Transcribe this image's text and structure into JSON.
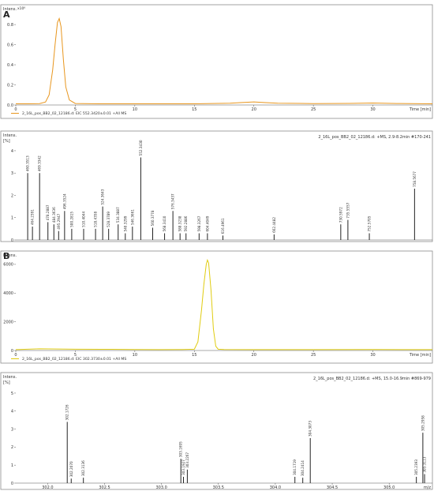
{
  "panel_labels": {
    "a": "A",
    "b": "B"
  },
  "colors": {
    "frame": "#8c8c8c",
    "tic": "#e8961e",
    "eic": "#e0cc10",
    "ms": "#222222"
  },
  "chart_data": [
    {
      "type": "line",
      "ylabel": "Intens.",
      "yscale_label": "x10⁶",
      "xlabel": "Time [min]",
      "xlim": [
        0,
        35
      ],
      "ylim": [
        0,
        0.95
      ],
      "xticks": [
        0,
        5,
        10,
        15,
        20,
        25,
        30
      ],
      "yticks": [
        0,
        0.2,
        0.4,
        0.6,
        0.8
      ],
      "ytick_labels": [
        "0.0",
        "0.2",
        "0.4",
        "0.6",
        "0.8"
      ],
      "legend": "2_16L_pos_BB2_02_12186.d: EIC 552.3420±0.01 +All MS",
      "series": [
        {
          "x": [
            0,
            1,
            2,
            2.5,
            2.8,
            3.1,
            3.3,
            3.5,
            3.65,
            3.8,
            4.0,
            4.2,
            4.5,
            5,
            7,
            10,
            15,
            18,
            19,
            20,
            21,
            22,
            25,
            28,
            30,
            32,
            35
          ],
          "y": [
            0.012,
            0.012,
            0.014,
            0.03,
            0.1,
            0.35,
            0.6,
            0.82,
            0.86,
            0.78,
            0.45,
            0.18,
            0.05,
            0.015,
            0.012,
            0.012,
            0.012,
            0.018,
            0.025,
            0.03,
            0.024,
            0.018,
            0.014,
            0.016,
            0.02,
            0.015,
            0.012
          ]
        }
      ]
    },
    {
      "type": "bar",
      "ylabel": "Intens.",
      "yunit": "[%]",
      "header": "2_16L_pos_BB2_02_12186.d: +MS, 2.9-8.2min #170-241",
      "xlim": [
        0,
        35
      ],
      "ylim": [
        0,
        4.6
      ],
      "yticks": [
        0,
        1,
        2,
        3,
        4
      ],
      "labels": [
        "460.3513",
        "464.2391",
        "469.3342",
        "478.2887",
        "484.3636",
        "495.2947",
        "496.3524",
        "500.2815",
        "510.4044",
        "518.4358",
        "524.3643",
        "528.3789",
        "534.3887",
        "540.3299",
        "546.3661",
        "552.3430",
        "560.3778",
        "568.3410",
        "576.3437",
        "588.3238",
        "592.2886",
        "598.3267",
        "604.4049",
        "616.4961",
        "662.4482",
        "730.5972",
        "735.5557",
        "752.5705",
        "758.5677"
      ],
      "x": [
        1.0,
        1.4,
        2.0,
        2.7,
        3.2,
        3.6,
        4.1,
        4.7,
        5.7,
        6.7,
        7.3,
        7.8,
        8.6,
        9.2,
        9.8,
        10.5,
        11.5,
        12.5,
        13.2,
        13.8,
        14.3,
        15.4,
        16.1,
        17.4,
        21.7,
        27.3,
        27.9,
        29.7,
        33.5
      ],
      "values": [
        3.0,
        0.6,
        3.0,
        0.8,
        0.7,
        0.4,
        1.3,
        0.5,
        0.5,
        0.5,
        1.5,
        0.5,
        0.7,
        0.3,
        0.6,
        3.7,
        0.55,
        0.3,
        1.3,
        0.3,
        0.3,
        0.3,
        0.3,
        0.2,
        0.25,
        0.7,
        0.9,
        0.3,
        2.3
      ]
    },
    {
      "type": "line",
      "ylabel": "Intens.",
      "xlabel": "Time [min]",
      "xlim": [
        0,
        35
      ],
      "ylim": [
        0,
        6600
      ],
      "xticks": [
        0,
        5,
        10,
        15,
        20,
        25,
        30
      ],
      "yticks": [
        0,
        2000,
        4000,
        6000
      ],
      "legend": "2_16L_pos_BB2_02_12186.d: EIC 302.3730±0.01 +All MS",
      "series": [
        {
          "x": [
            0,
            2,
            5,
            8,
            10,
            12,
            14,
            15,
            15.3,
            15.6,
            15.8,
            16.0,
            16.1,
            16.2,
            16.4,
            16.6,
            16.8,
            17,
            17.5,
            20,
            25,
            30,
            35
          ],
          "y": [
            60,
            120,
            90,
            80,
            70,
            60,
            70,
            90,
            600,
            2800,
            4600,
            6000,
            6300,
            6100,
            4200,
            1500,
            300,
            90,
            70,
            60,
            60,
            70,
            60
          ]
        }
      ]
    },
    {
      "type": "bar",
      "ylabel": "Intens.",
      "yunit": "[%]",
      "xlabel": "m/z",
      "header": "2_16L_pos_BB2_02_12186.d: +MS, 15.0-16.9min #869-979",
      "xlim": [
        301.72,
        305.38
      ],
      "ylim": [
        0,
        5.7
      ],
      "xticks": [
        302.0,
        302.5,
        303.0,
        303.5,
        304.0,
        304.5,
        305.0
      ],
      "yticks": [
        0,
        1,
        2,
        3,
        4,
        5
      ],
      "labels": [
        "302.1726",
        "302.2070",
        "302.3136",
        "303.1695",
        "303.1927",
        "303.2267",
        "304.1719",
        "304.2414",
        "304.3073",
        "305.2393",
        "305.2958",
        "305.3113"
      ],
      "x": [
        302.172,
        302.207,
        302.314,
        303.17,
        303.193,
        303.227,
        304.172,
        304.241,
        304.307,
        305.239,
        305.296,
        305.311
      ],
      "values": [
        3.4,
        0.25,
        0.3,
        1.35,
        0.35,
        0.75,
        0.35,
        0.3,
        2.5,
        0.35,
        2.8,
        0.5
      ]
    }
  ]
}
